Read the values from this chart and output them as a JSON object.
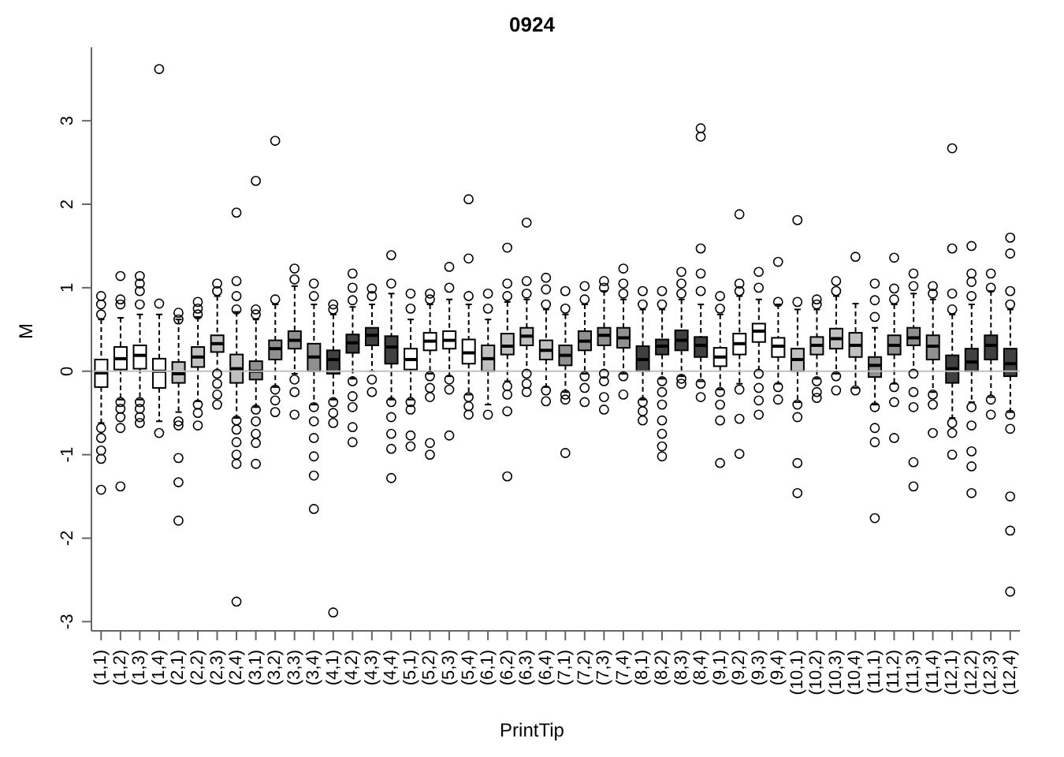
{
  "chart_data": {
    "type": "box",
    "title": "0924",
    "xlabel": "PrintTip",
    "ylabel": "M",
    "categories": [
      "(1,1)",
      "(1,2)",
      "(1,3)",
      "(1,4)",
      "(2,1)",
      "(2,2)",
      "(2,3)",
      "(2,4)",
      "(3,1)",
      "(3,2)",
      "(3,3)",
      "(3,4)",
      "(4,1)",
      "(4,2)",
      "(4,3)",
      "(4,4)",
      "(5,1)",
      "(5,2)",
      "(5,3)",
      "(5,4)",
      "(6,1)",
      "(6,2)",
      "(6,3)",
      "(6,4)",
      "(7,1)",
      "(7,2)",
      "(7,3)",
      "(7,4)",
      "(8,1)",
      "(8,2)",
      "(8,3)",
      "(8,4)",
      "(9,1)",
      "(9,2)",
      "(9,3)",
      "(9,4)",
      "(10,1)",
      "(10,2)",
      "(10,3)",
      "(10,4)",
      "(11,1)",
      "(11,2)",
      "(11,3)",
      "(11,4)",
      "(12,1)",
      "(12,2)",
      "(12,3)",
      "(12,4)"
    ],
    "colors": [
      "#ffffff",
      "#ffffff",
      "#ffffff",
      "#ffffff",
      "#c0c0c0",
      "#c0c0c0",
      "#c0c0c0",
      "#c0c0c0",
      "#909090",
      "#909090",
      "#909090",
      "#909090",
      "#404040",
      "#404040",
      "#404040",
      "#404040",
      "#ffffff",
      "#ffffff",
      "#ffffff",
      "#ffffff",
      "#c0c0c0",
      "#c0c0c0",
      "#c0c0c0",
      "#c0c0c0",
      "#909090",
      "#909090",
      "#909090",
      "#909090",
      "#404040",
      "#404040",
      "#404040",
      "#404040",
      "#ffffff",
      "#ffffff",
      "#ffffff",
      "#ffffff",
      "#c0c0c0",
      "#c0c0c0",
      "#c0c0c0",
      "#c0c0c0",
      "#909090",
      "#909090",
      "#909090",
      "#909090",
      "#404040",
      "#404040",
      "#404040",
      "#404040"
    ],
    "boxes": [
      {
        "low": -0.62,
        "q1": -0.19,
        "median": -0.02,
        "q3": 0.14,
        "high": 0.62,
        "outliers": [
          0.9,
          0.8,
          0.68,
          -0.68,
          -0.8,
          -0.95,
          -1.05,
          -1.42
        ]
      },
      {
        "low": -0.34,
        "q1": 0.02,
        "median": 0.15,
        "q3": 0.29,
        "high": 0.64,
        "outliers": [
          1.14,
          0.86,
          0.8,
          -0.37,
          -0.45,
          -0.55,
          -0.68,
          -1.38
        ]
      },
      {
        "low": -0.34,
        "q1": 0.03,
        "median": 0.19,
        "q3": 0.31,
        "high": 0.68,
        "outliers": [
          1.14,
          1.05,
          0.96,
          0.8,
          -0.37,
          -0.45,
          -0.55,
          -0.62
        ]
      },
      {
        "low": -0.6,
        "q1": -0.2,
        "median": 0.0,
        "q3": 0.15,
        "high": 0.68,
        "outliers": [
          3.62,
          0.81,
          -0.74
        ]
      },
      {
        "low": -0.49,
        "q1": -0.14,
        "median": -0.03,
        "q3": 0.11,
        "high": 0.62,
        "outliers": [
          0.7,
          0.62,
          -0.6,
          -0.65,
          -1.04,
          -1.33,
          -1.79
        ]
      },
      {
        "low": -0.36,
        "q1": 0.05,
        "median": 0.17,
        "q3": 0.29,
        "high": 0.65,
        "outliers": [
          0.83,
          0.75,
          0.68,
          -0.4,
          -0.5,
          -0.65
        ]
      },
      {
        "low": 0.0,
        "q1": 0.23,
        "median": 0.33,
        "q3": 0.43,
        "high": 0.9,
        "outliers": [
          1.05,
          0.96,
          -0.03,
          -0.15,
          -0.28,
          -0.4
        ]
      },
      {
        "low": -0.56,
        "q1": -0.14,
        "median": 0.03,
        "q3": 0.2,
        "high": 0.71,
        "outliers": [
          1.9,
          1.08,
          0.9,
          0.74,
          -0.59,
          -0.7,
          -0.85,
          -1.0,
          -1.11,
          -2.76
        ]
      },
      {
        "low": -0.43,
        "q1": -0.1,
        "median": 0.0,
        "q3": 0.12,
        "high": 0.62,
        "outliers": [
          2.28,
          0.74,
          0.68,
          -0.46,
          -0.6,
          -0.75,
          -0.86,
          -1.11
        ]
      },
      {
        "low": -0.19,
        "q1": 0.14,
        "median": 0.27,
        "q3": 0.37,
        "high": 0.8,
        "outliers": [
          2.76,
          0.86,
          -0.22,
          -0.35,
          -0.49
        ]
      },
      {
        "low": -0.03,
        "q1": 0.27,
        "median": 0.37,
        "q3": 0.48,
        "high": 1.02,
        "outliers": [
          1.23,
          1.1,
          -0.1,
          -0.25,
          -0.52
        ]
      },
      {
        "low": -0.4,
        "q1": 0.0,
        "median": 0.17,
        "q3": 0.33,
        "high": 0.8,
        "outliers": [
          1.05,
          0.9,
          -0.43,
          -0.6,
          -0.8,
          -1.02,
          -1.25,
          -1.65
        ]
      },
      {
        "low": -0.34,
        "q1": -0.03,
        "median": 0.14,
        "q3": 0.25,
        "high": 0.68,
        "outliers": [
          0.8,
          0.74,
          -0.37,
          -0.5,
          -0.62,
          -2.89
        ]
      },
      {
        "low": -0.09,
        "q1": 0.22,
        "median": 0.34,
        "q3": 0.44,
        "high": 0.77,
        "outliers": [
          1.17,
          1.0,
          0.85,
          -0.12,
          -0.3,
          -0.43,
          -0.67,
          -0.85
        ]
      },
      {
        "low": 0.0,
        "q1": 0.31,
        "median": 0.43,
        "q3": 0.52,
        "high": 0.8,
        "outliers": [
          0.99,
          0.9,
          -0.1,
          -0.25
        ]
      },
      {
        "low": -0.34,
        "q1": 0.09,
        "median": 0.29,
        "q3": 0.42,
        "high": 0.93,
        "outliers": [
          1.39,
          1.05,
          -0.37,
          -0.55,
          -0.75,
          -0.93,
          -1.28
        ]
      },
      {
        "low": -0.34,
        "q1": 0.02,
        "median": 0.14,
        "q3": 0.27,
        "high": 0.62,
        "outliers": [
          0.93,
          0.75,
          -0.37,
          -0.46,
          -0.77,
          -0.9
        ]
      },
      {
        "low": -0.03,
        "q1": 0.25,
        "median": 0.36,
        "q3": 0.46,
        "high": 0.8,
        "outliers": [
          0.93,
          0.86,
          -0.06,
          -0.2,
          -0.31,
          -0.86,
          -1.0
        ]
      },
      {
        "low": -0.06,
        "q1": 0.27,
        "median": 0.37,
        "q3": 0.48,
        "high": 0.86,
        "outliers": [
          1.25,
          1.0,
          -0.1,
          -0.22,
          -0.77
        ]
      },
      {
        "low": -0.28,
        "q1": 0.09,
        "median": 0.22,
        "q3": 0.38,
        "high": 0.8,
        "outliers": [
          2.06,
          1.35,
          0.9,
          -0.31,
          -0.42,
          -0.52
        ]
      },
      {
        "low": -0.4,
        "q1": 0.0,
        "median": 0.15,
        "q3": 0.31,
        "high": 0.62,
        "outliers": [
          0.93,
          0.75,
          -0.52
        ]
      },
      {
        "low": -0.12,
        "q1": 0.2,
        "median": 0.3,
        "q3": 0.45,
        "high": 0.83,
        "outliers": [
          1.48,
          1.05,
          0.9,
          -0.18,
          -0.28,
          -0.48,
          -1.26
        ]
      },
      {
        "low": 0.0,
        "q1": 0.31,
        "median": 0.42,
        "q3": 0.52,
        "high": 0.86,
        "outliers": [
          1.78,
          1.08,
          0.93,
          -0.03,
          -0.15,
          -0.25
        ]
      },
      {
        "low": -0.19,
        "q1": 0.14,
        "median": 0.25,
        "q3": 0.37,
        "high": 0.74,
        "outliers": [
          1.12,
          0.98,
          0.8,
          -0.23,
          -0.36
        ]
      },
      {
        "low": -0.25,
        "q1": 0.07,
        "median": 0.19,
        "q3": 0.31,
        "high": 0.68,
        "outliers": [
          0.96,
          0.75,
          -0.28,
          -0.34,
          -0.98
        ]
      },
      {
        "low": -0.03,
        "q1": 0.25,
        "median": 0.36,
        "q3": 0.48,
        "high": 0.8,
        "outliers": [
          1.02,
          0.86,
          -0.06,
          -0.2,
          -0.37
        ]
      },
      {
        "low": 0.0,
        "q1": 0.31,
        "median": 0.43,
        "q3": 0.52,
        "high": 0.96,
        "outliers": [
          1.08,
          1.0,
          -0.03,
          -0.12,
          -0.31,
          -0.46
        ]
      },
      {
        "low": -0.03,
        "q1": 0.28,
        "median": 0.4,
        "q3": 0.52,
        "high": 0.86,
        "outliers": [
          1.23,
          1.05,
          0.93,
          -0.06,
          -0.28
        ]
      },
      {
        "low": -0.34,
        "q1": 0.0,
        "median": 0.14,
        "q3": 0.3,
        "high": 0.74,
        "outliers": [
          0.96,
          0.8,
          -0.37,
          -0.48,
          -0.59
        ]
      },
      {
        "low": -0.09,
        "q1": 0.2,
        "median": 0.3,
        "q3": 0.38,
        "high": 0.74,
        "outliers": [
          0.96,
          0.8,
          -0.12,
          -0.25,
          -0.4,
          -0.59,
          -0.75,
          -0.9,
          -1.02
        ]
      },
      {
        "low": -0.06,
        "q1": 0.25,
        "median": 0.37,
        "q3": 0.49,
        "high": 0.86,
        "outliers": [
          1.19,
          1.05,
          0.93,
          -0.09,
          -0.15
        ]
      },
      {
        "low": -0.12,
        "q1": 0.17,
        "median": 0.31,
        "q3": 0.41,
        "high": 0.8,
        "outliers": [
          2.91,
          2.81,
          1.47,
          1.17,
          0.96,
          -0.15,
          -0.31
        ]
      },
      {
        "low": -0.22,
        "q1": 0.06,
        "median": 0.17,
        "q3": 0.28,
        "high": 0.68,
        "outliers": [
          0.9,
          0.75,
          -0.25,
          -0.4,
          -0.59,
          -1.1
        ]
      },
      {
        "low": -0.15,
        "q1": 0.2,
        "median": 0.33,
        "q3": 0.45,
        "high": 0.9,
        "outliers": [
          1.88,
          1.05,
          0.96,
          -0.22,
          -0.57,
          -0.99
        ]
      },
      {
        "low": 0.0,
        "q1": 0.35,
        "median": 0.48,
        "q3": 0.57,
        "high": 0.86,
        "outliers": [
          1.19,
          1.0,
          -0.03,
          -0.2,
          -0.35,
          -0.52
        ]
      },
      {
        "low": -0.15,
        "q1": 0.17,
        "median": 0.3,
        "q3": 0.4,
        "high": 0.8,
        "outliers": [
          1.31,
          0.83,
          -0.19,
          -0.34
        ]
      },
      {
        "low": -0.37,
        "q1": 0.0,
        "median": 0.14,
        "q3": 0.27,
        "high": 0.74,
        "outliers": [
          1.81,
          0.83,
          -0.4,
          -0.55,
          -1.1,
          -1.46
        ]
      },
      {
        "low": -0.09,
        "q1": 0.2,
        "median": 0.31,
        "q3": 0.41,
        "high": 0.74,
        "outliers": [
          0.86,
          0.8,
          -0.12,
          -0.25,
          -0.32
        ]
      },
      {
        "low": -0.03,
        "q1": 0.27,
        "median": 0.39,
        "q3": 0.51,
        "high": 0.9,
        "outliers": [
          1.08,
          0.96,
          -0.06,
          -0.23
        ]
      },
      {
        "low": -0.2,
        "q1": 0.17,
        "median": 0.31,
        "q3": 0.46,
        "high": 0.81,
        "outliers": [
          1.37,
          -0.23
        ]
      },
      {
        "low": -0.4,
        "q1": -0.07,
        "median": 0.07,
        "q3": 0.17,
        "high": 0.52,
        "outliers": [
          1.05,
          0.85,
          0.65,
          -0.43,
          -0.68,
          -0.85,
          -1.76
        ]
      },
      {
        "low": -0.15,
        "q1": 0.2,
        "median": 0.31,
        "q3": 0.43,
        "high": 0.8,
        "outliers": [
          1.36,
          0.99,
          0.86,
          -0.19,
          -0.37,
          -0.8
        ]
      },
      {
        "low": 0.0,
        "q1": 0.31,
        "median": 0.4,
        "q3": 0.52,
        "high": 0.93,
        "outliers": [
          1.17,
          1.02,
          -0.03,
          -0.25,
          -0.43,
          -1.09,
          -1.38
        ]
      },
      {
        "low": -0.25,
        "q1": 0.14,
        "median": 0.3,
        "q3": 0.43,
        "high": 0.86,
        "outliers": [
          1.02,
          0.93,
          -0.28,
          -0.4,
          -0.74
        ]
      },
      {
        "low": -0.56,
        "q1": -0.14,
        "median": 0.03,
        "q3": 0.19,
        "high": 0.68,
        "outliers": [
          2.67,
          1.47,
          0.93,
          0.74,
          -0.62,
          -0.74,
          -1.0
        ]
      },
      {
        "low": -0.37,
        "q1": 0.0,
        "median": 0.11,
        "q3": 0.27,
        "high": 0.8,
        "outliers": [
          1.5,
          1.17,
          1.07,
          0.9,
          -0.43,
          -0.65,
          -0.96,
          -1.14,
          -1.46
        ]
      },
      {
        "low": -0.31,
        "q1": 0.14,
        "median": 0.31,
        "q3": 0.43,
        "high": 0.96,
        "outliers": [
          1.17,
          1.0,
          -0.34,
          -0.52
        ]
      },
      {
        "low": -0.49,
        "q1": -0.06,
        "median": 0.09,
        "q3": 0.27,
        "high": 0.74,
        "outliers": [
          1.6,
          1.41,
          0.96,
          0.8,
          -0.52,
          -0.69,
          -1.5,
          -1.91,
          -2.64
        ]
      }
    ],
    "ylim": [
      -3.11,
      3.88
    ],
    "yticks": [
      -3,
      -2,
      -1,
      0,
      1,
      2,
      3
    ],
    "ref_lines": [
      {
        "axis": "y",
        "value": 0,
        "color": "#c0c0c0"
      }
    ]
  }
}
